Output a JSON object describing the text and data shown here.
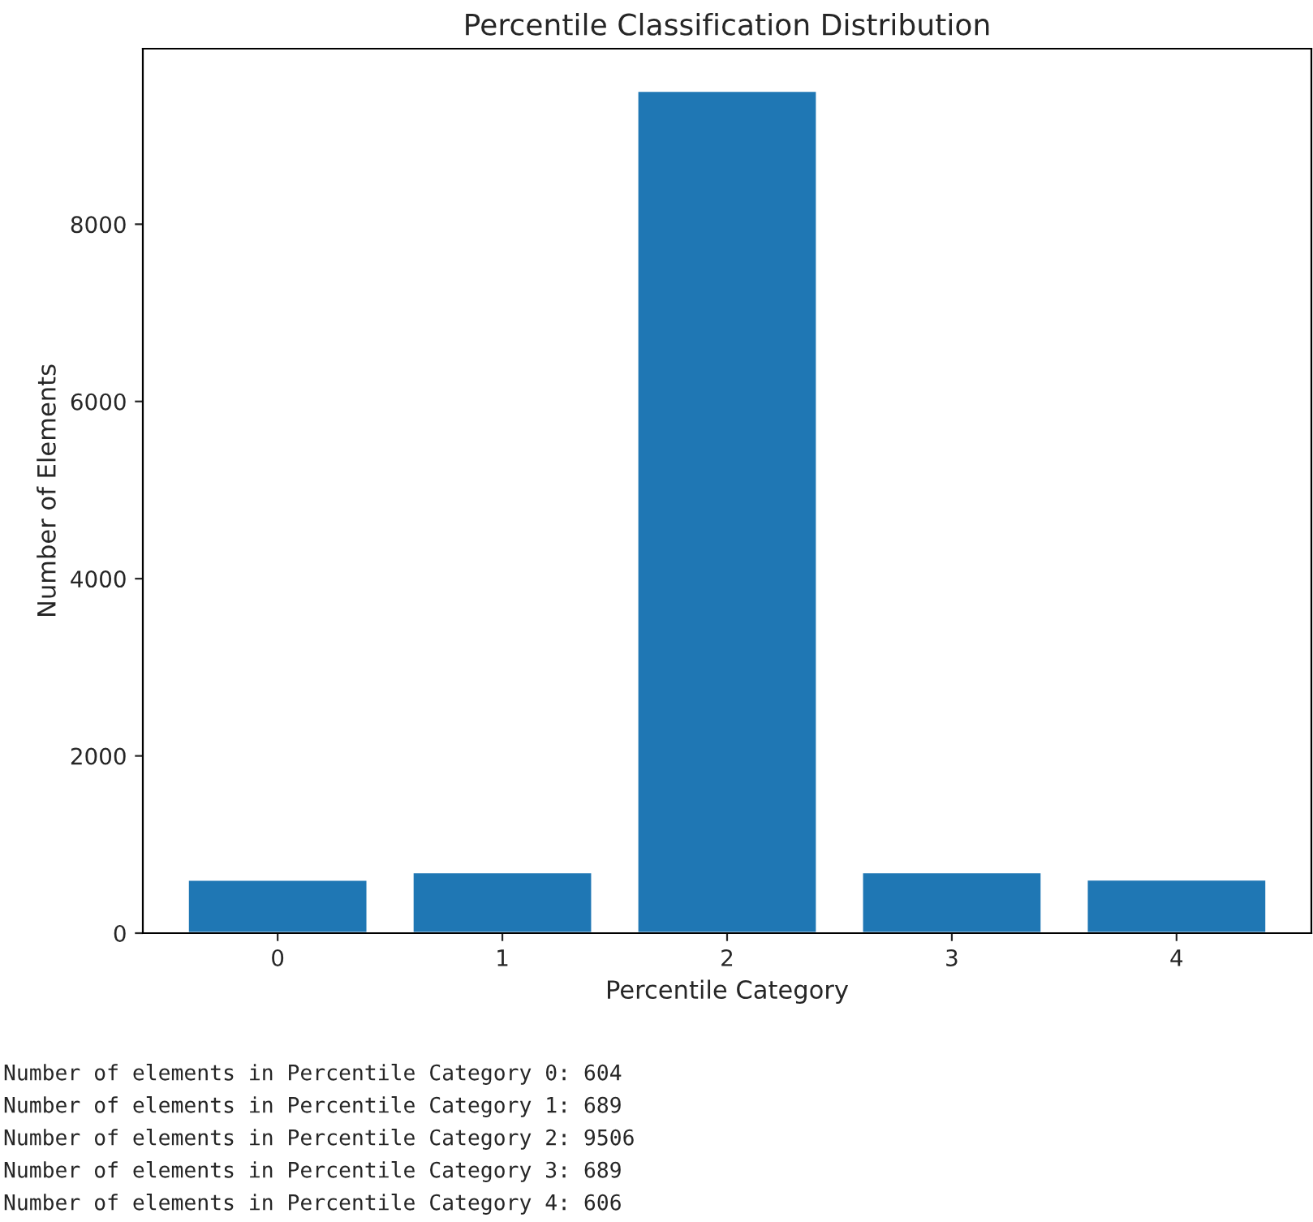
{
  "chart_data": {
    "type": "bar",
    "title": "Percentile Classification Distribution",
    "xlabel": "Percentile Category",
    "ylabel": "Number of Elements",
    "categories": [
      "0",
      "1",
      "2",
      "3",
      "4"
    ],
    "values": [
      604,
      689,
      9506,
      689,
      606
    ],
    "color": "#1f77b4",
    "ylim": [
      0,
      9981
    ],
    "yticks": [
      0,
      2000,
      4000,
      6000,
      8000
    ],
    "grid": false,
    "legend": false,
    "annotations": [
      "Number of elements in Percentile Category 0: 604",
      "Number of elements in Percentile Category 1: 689",
      "Number of elements in Percentile Category 2: 9506",
      "Number of elements in Percentile Category 3: 689",
      "Number of elements in Percentile Category 4: 606"
    ]
  }
}
